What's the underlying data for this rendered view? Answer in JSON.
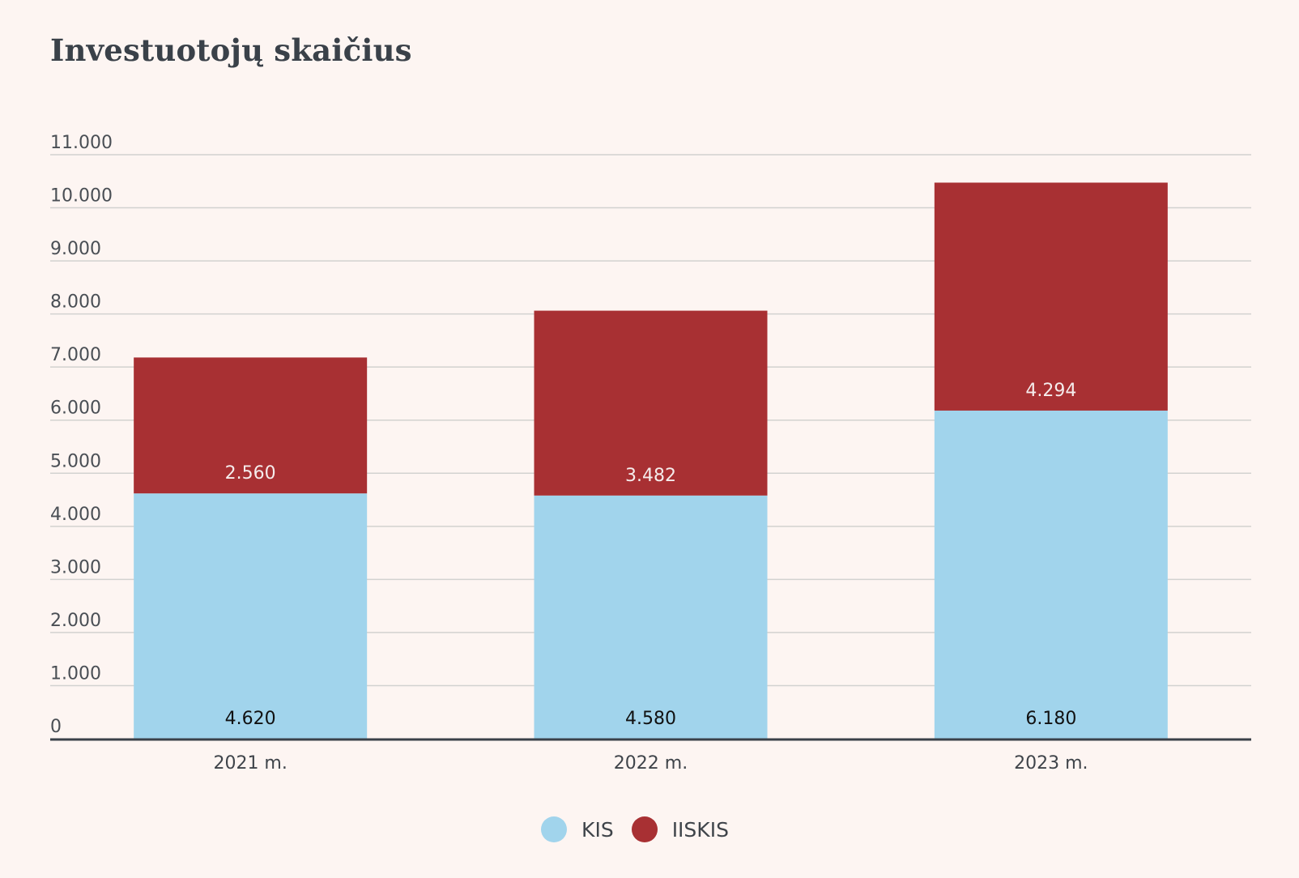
{
  "chart_data": {
    "type": "bar",
    "stacked": true,
    "title": "Investuotojų skaičius",
    "categories": [
      "2021 m.",
      "2022 m.",
      "2023 m."
    ],
    "series": [
      {
        "name": "KIS",
        "color": "#a1d4ec",
        "label_color": "#111111",
        "values": [
          4620,
          4580,
          6180
        ],
        "value_labels": [
          "4.620",
          "4.580",
          "6.180"
        ]
      },
      {
        "name": "IISKIS",
        "color": "#a83033",
        "label_color": "#f5ecec",
        "values": [
          2560,
          3482,
          4294
        ],
        "value_labels": [
          "2.560",
          "3.482",
          "4.294"
        ]
      }
    ],
    "ylim": [
      0,
      11000
    ],
    "yticks": [
      0,
      1000,
      2000,
      3000,
      4000,
      5000,
      6000,
      7000,
      8000,
      9000,
      10000,
      11000
    ],
    "ytick_labels": [
      "0",
      "1.000",
      "2.000",
      "3.000",
      "4.000",
      "5.000",
      "6.000",
      "7.000",
      "8.000",
      "9.000",
      "10.000",
      "11.000"
    ],
    "grid": true,
    "legend_position": "bottom-center",
    "xlabel": "",
    "ylabel": ""
  }
}
